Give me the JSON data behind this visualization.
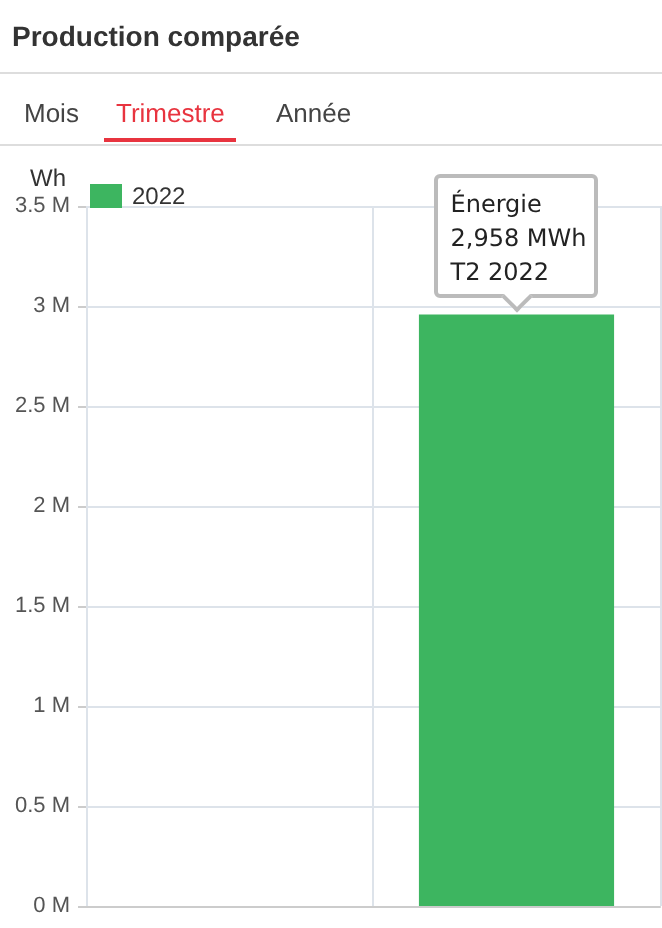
{
  "chart_data": {
    "type": "bar",
    "title": "Production comparée",
    "ylabel": "Wh",
    "annotations": [
      "Mois",
      "Trimestre",
      "Année",
      {
        "text": "Énergie\n2,958 MWh\nT2 2022",
        "y": 2958000
      }
    ],
    "categories": [
      null,
      null
    ],
    "series": [
      {
        "name": "2022",
        "color": "#3db560",
        "values": [
          null,
          2958000
        ]
      }
    ],
    "ylim": [
      0,
      3500000
    ],
    "yticks": [
      {
        "value": 0,
        "label": "0 M"
      },
      {
        "value": 500000,
        "label": "0.5 M"
      },
      {
        "value": 1000000,
        "label": "1 M"
      },
      {
        "value": 1500000,
        "label": "1.5 M"
      },
      {
        "value": 2000000,
        "label": "2 M"
      },
      {
        "value": 2500000,
        "label": "2.5 M"
      },
      {
        "value": 3000000,
        "label": "3 M"
      },
      {
        "value": 3500000,
        "label": "3.5 M"
      }
    ],
    "grid": true,
    "legend": "top left",
    "tick_labels": "y"
  }
}
